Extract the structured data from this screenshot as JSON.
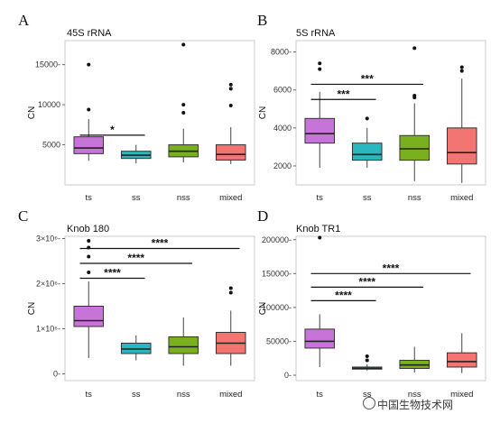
{
  "chart_data": [
    {
      "type": "box",
      "panel": "A",
      "title": "45S rRNA",
      "ylabel": "CN",
      "ylim": [
        0,
        18000
      ],
      "yticks": [
        5000,
        10000,
        15000
      ],
      "ytick_labels": [
        "5000",
        "10000",
        "15000-"
      ],
      "categories": [
        "ts",
        "ss",
        "nss",
        "mixed"
      ],
      "colors": [
        "#c774d8",
        "#2bb7bf",
        "#7ab01e",
        "#f27572"
      ],
      "boxes": [
        {
          "category": "ts",
          "min": 3000,
          "q1": 3900,
          "median": 4600,
          "q3": 6000,
          "max": 8200,
          "outliers": [
            15000,
            9400
          ]
        },
        {
          "category": "ss",
          "min": 2700,
          "q1": 3300,
          "median": 3700,
          "q3": 4200,
          "max": 5000,
          "outliers": []
        },
        {
          "category": "nss",
          "min": 2800,
          "q1": 3500,
          "median": 4200,
          "q3": 5000,
          "max": 7000,
          "outliers": [
            17500,
            10000,
            9000
          ]
        },
        {
          "category": "mixed",
          "min": 2600,
          "q1": 3100,
          "median": 3800,
          "q3": 5000,
          "max": 7200,
          "outliers": [
            12500,
            12000,
            9900
          ]
        }
      ],
      "significance": [
        {
          "from": "ts",
          "to": "ss",
          "y": 6200,
          "label": "*"
        }
      ]
    },
    {
      "type": "box",
      "panel": "B",
      "title": "5S rRNA",
      "ylabel": "CN",
      "ylim": [
        1000,
        8600
      ],
      "yticks": [
        2000,
        4000,
        6000,
        8000
      ],
      "ytick_labels": [
        "2000",
        "4000",
        "6000",
        "8000-"
      ],
      "categories": [
        "ts",
        "ss",
        "nss",
        "mixed"
      ],
      "colors": [
        "#c774d8",
        "#2bb7bf",
        "#7ab01e",
        "#f27572"
      ],
      "boxes": [
        {
          "category": "ts",
          "min": 1900,
          "q1": 3200,
          "median": 3700,
          "q3": 4500,
          "max": 5900,
          "outliers": [
            7100,
            7400
          ]
        },
        {
          "category": "ss",
          "min": 1900,
          "q1": 2300,
          "median": 2600,
          "q3": 3200,
          "max": 4000,
          "outliers": [
            4500
          ]
        },
        {
          "category": "nss",
          "min": 1200,
          "q1": 2300,
          "median": 2900,
          "q3": 3600,
          "max": 5300,
          "outliers": [
            8200,
            5700,
            5600
          ]
        },
        {
          "category": "mixed",
          "min": 1100,
          "q1": 2100,
          "median": 2700,
          "q3": 4000,
          "max": 6600,
          "outliers": [
            7200,
            7000
          ]
        }
      ],
      "significance": [
        {
          "from": "ts",
          "to": "ss",
          "y": 5500,
          "label": "***"
        },
        {
          "from": "ts",
          "to": "nss",
          "y": 6300,
          "label": "***"
        }
      ]
    },
    {
      "type": "box",
      "panel": "C",
      "title": "Knob 180",
      "ylabel": "CN",
      "ylim": [
        -0.15,
        3.05
      ],
      "yticks": [
        0,
        1,
        2,
        3
      ],
      "ytick_labels": [
        "0-",
        "1×10⁶-",
        "2×10⁶-",
        "3×10⁶-"
      ],
      "categories": [
        "ts",
        "ss",
        "nss",
        "mixed"
      ],
      "colors": [
        "#c774d8",
        "#2bb7bf",
        "#7ab01e",
        "#f27572"
      ],
      "boxes": [
        {
          "category": "ts",
          "min": 0.35,
          "q1": 1.05,
          "median": 1.18,
          "q3": 1.5,
          "max": 2.05,
          "outliers": [
            2.95,
            2.8,
            2.6,
            2.25
          ]
        },
        {
          "category": "ss",
          "min": 0.3,
          "q1": 0.45,
          "median": 0.55,
          "q3": 0.68,
          "max": 0.85,
          "outliers": []
        },
        {
          "category": "nss",
          "min": 0.18,
          "q1": 0.45,
          "median": 0.6,
          "q3": 0.82,
          "max": 1.25,
          "outliers": []
        },
        {
          "category": "mixed",
          "min": 0.18,
          "q1": 0.45,
          "median": 0.68,
          "q3": 0.92,
          "max": 1.4,
          "outliers": [
            1.9,
            1.8
          ]
        }
      ],
      "significance": [
        {
          "from": "ts",
          "to": "ss",
          "y": 2.12,
          "label": "****"
        },
        {
          "from": "ts",
          "to": "nss",
          "y": 2.45,
          "label": "****"
        },
        {
          "from": "ts",
          "to": "mixed",
          "y": 2.78,
          "label": "****"
        }
      ]
    },
    {
      "type": "box",
      "panel": "D",
      "title": "Knob TR1",
      "ylabel": "CN",
      "ylim": [
        -8000,
        205000
      ],
      "yticks": [
        0,
        50000,
        100000,
        150000,
        200000
      ],
      "ytick_labels": [
        "0-",
        "50000-",
        "100000-",
        "150000-",
        "200000-"
      ],
      "categories": [
        "ts",
        "ss",
        "nss",
        "mixed"
      ],
      "colors": [
        "#c774d8",
        "#2bb7bf",
        "#7ab01e",
        "#f27572"
      ],
      "boxes": [
        {
          "category": "ts",
          "min": 12000,
          "q1": 40000,
          "median": 50000,
          "q3": 68000,
          "max": 90000,
          "outliers": [
            203000
          ]
        },
        {
          "category": "ss",
          "min": 7000,
          "q1": 9000,
          "median": 10000,
          "q3": 12000,
          "max": 16000,
          "outliers": [
            28000,
            22000
          ]
        },
        {
          "category": "nss",
          "min": 4000,
          "q1": 10000,
          "median": 15000,
          "q3": 22000,
          "max": 42000,
          "outliers": []
        },
        {
          "category": "mixed",
          "min": 3000,
          "q1": 12000,
          "median": 20000,
          "q3": 33000,
          "max": 62000,
          "outliers": []
        }
      ],
      "significance": [
        {
          "from": "ts",
          "to": "ss",
          "y": 110000,
          "label": "****"
        },
        {
          "from": "ts",
          "to": "nss",
          "y": 130000,
          "label": "****"
        },
        {
          "from": "ts",
          "to": "mixed",
          "y": 150000,
          "label": "****"
        }
      ]
    }
  ],
  "watermark": {
    "text": "中国生物技术网",
    "icon": "wechat-icon"
  }
}
